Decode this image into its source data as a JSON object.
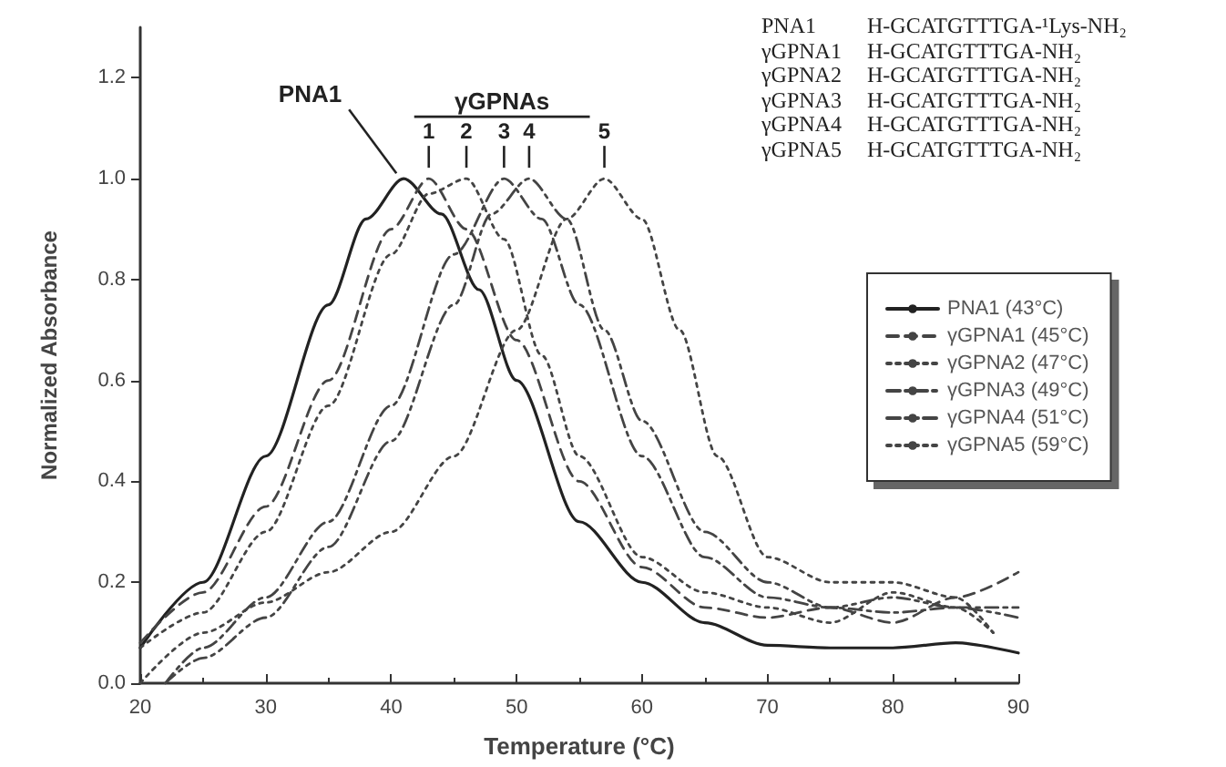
{
  "chart_data": {
    "type": "line",
    "xlabel": "Temperature (°C)",
    "ylabel": "Normalized Absorbance",
    "xlim": [
      20,
      90
    ],
    "xticks": [
      20,
      30,
      40,
      50,
      60,
      70,
      80,
      90
    ],
    "ylim": [
      0,
      1.3
    ],
    "yticks": [
      {
        "value": 0,
        "label": "0.0"
      },
      0.2,
      0.4,
      0.6,
      0.8,
      {
        "value": 1,
        "label": "1.0"
      },
      1.2
    ],
    "grid": false,
    "legend": "right",
    "marker": "none",
    "series": [
      {
        "name": "PNA1 (43°C)",
        "color": "#222222",
        "line_style": "solid",
        "x": [
          20,
          25,
          30,
          35,
          38,
          41,
          44,
          47,
          50,
          55,
          60,
          65,
          70,
          75,
          80,
          85,
          90
        ],
        "values": [
          0.07,
          0.2,
          0.45,
          0.75,
          0.92,
          1.0,
          0.93,
          0.78,
          0.6,
          0.32,
          0.2,
          0.12,
          0.075,
          0.07,
          0.07,
          0.08,
          0.06
        ]
      },
      {
        "name": "γGPNA1 (45°C)",
        "color": "#444444",
        "line_style": "dashed",
        "x": [
          20,
          25,
          30,
          35,
          40,
          43,
          46,
          50,
          55,
          60,
          65,
          70,
          75,
          80,
          85,
          90
        ],
        "values": [
          0.08,
          0.18,
          0.35,
          0.6,
          0.9,
          1.0,
          0.9,
          0.68,
          0.4,
          0.23,
          0.15,
          0.13,
          0.15,
          0.12,
          0.17,
          0.22
        ]
      },
      {
        "name": "γGPNA2 (47°C)",
        "color": "#444444",
        "line_style": "dotted",
        "x": [
          20,
          25,
          30,
          35,
          40,
          43,
          46,
          49,
          52,
          55,
          60,
          65,
          70,
          75,
          80,
          85,
          88
        ],
        "values": [
          0.07,
          0.14,
          0.3,
          0.55,
          0.85,
          0.97,
          1.0,
          0.88,
          0.65,
          0.45,
          0.25,
          0.18,
          0.15,
          0.12,
          0.18,
          0.15,
          0.1
        ]
      },
      {
        "name": "γGPNA3 (49°C)",
        "color": "#444444",
        "line_style": "dashdot",
        "x": [
          22,
          25,
          30,
          35,
          40,
          45,
          49,
          52,
          55,
          60,
          65,
          70,
          75,
          80,
          85,
          90
        ],
        "values": [
          0.0,
          0.07,
          0.17,
          0.32,
          0.55,
          0.85,
          1.0,
          0.92,
          0.75,
          0.45,
          0.25,
          0.17,
          0.15,
          0.14,
          0.15,
          0.15
        ]
      },
      {
        "name": "γGPNA4 (51°C)",
        "color": "#444444",
        "line_style": "dashdotdot",
        "x": [
          22,
          25,
          30,
          35,
          40,
          45,
          48,
          51,
          54,
          57,
          60,
          65,
          70,
          75,
          80,
          85,
          90
        ],
        "values": [
          0.0,
          0.05,
          0.13,
          0.27,
          0.48,
          0.75,
          0.93,
          1.0,
          0.92,
          0.7,
          0.52,
          0.3,
          0.2,
          0.15,
          0.17,
          0.15,
          0.13
        ]
      },
      {
        "name": "γGPNA5 (59°C)",
        "color": "#444444",
        "line_style": "dotted",
        "x": [
          20,
          25,
          30,
          35,
          40,
          45,
          50,
          54,
          57,
          60,
          63,
          66,
          70,
          75,
          80,
          85,
          88
        ],
        "values": [
          0.0,
          0.1,
          0.16,
          0.22,
          0.3,
          0.45,
          0.7,
          0.92,
          1.0,
          0.92,
          0.7,
          0.45,
          0.25,
          0.2,
          0.2,
          0.17,
          0.1
        ]
      }
    ],
    "annotations": [
      {
        "text": "PNA1",
        "x": 41,
        "y": 1.0
      },
      {
        "text": "1",
        "x": 43,
        "y": 1.0
      },
      {
        "text": "2",
        "x": 46,
        "y": 1.0
      },
      {
        "text": "3",
        "x": 49,
        "y": 1.0
      },
      {
        "text": "4",
        "x": 51,
        "y": 1.0
      },
      {
        "text": "5",
        "x": 57,
        "y": 1.0
      },
      "γGPNAs",
      "PNA1",
      "H-GCATGTTTGA-¹Lys-NH₂",
      "γGPNA1",
      "H-GCATGTTTGA-NH₂",
      "γGPNA2",
      "H-GCATGTTTGA-NH₂",
      "γGPNA3",
      "H-GCATGTTTGA-NH₂",
      "γGPNA4",
      "H-GCATGTTTGA-NH₂",
      "γGPNA5",
      "H-GCATGTTTGA-NH₂"
    ]
  }
}
